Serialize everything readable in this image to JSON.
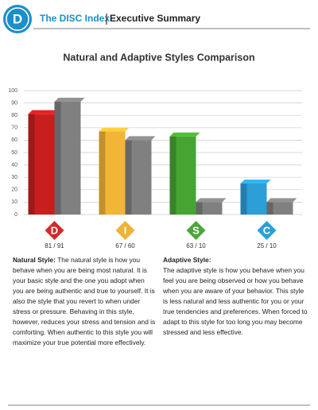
{
  "header": {
    "logo": "D",
    "title": "The DISC Index",
    "subtitle": "Executive Summary"
  },
  "chart_data": {
    "type": "bar",
    "title": "Natural and Adaptive Styles Comparison",
    "categories": [
      "D",
      "I",
      "S",
      "C"
    ],
    "category_colors": [
      "#d42a2a",
      "#f0b233",
      "#4aa83a",
      "#2a9fd8"
    ],
    "series": [
      {
        "values": [
          81,
          67,
          63,
          25
        ],
        "colors": [
          "#c81e1e",
          "#f2b535",
          "#46a532",
          "#2a9fd8"
        ]
      },
      {
        "values": [
          91,
          60,
          10,
          10
        ],
        "color": "#808080"
      }
    ],
    "score_labels": [
      "81 / 91",
      "67 / 60",
      "63 / 10",
      "25 / 10"
    ],
    "ylim": [
      0,
      100
    ],
    "yticks": [
      0,
      10,
      20,
      30,
      40,
      50,
      60,
      70,
      80,
      90,
      100
    ],
    "grid": true
  },
  "sections": [
    {
      "heading": "Natural Style:",
      "body": "The natural style is how you behave when you are being  most natural. It is your basic style and the one you adopt when you are being authentic and true to yourself.  It is also the style that you revert to when under stress or pressure. Behaving in this style, however, reduces your stress and tension and is comforting. When authentic to this style you will maximize your true potential more effectively."
    },
    {
      "heading": "Adaptive Style:",
      "body": "The adaptive style is how you behave when you feel you are being observed or how you behave when you are aware of your behavior. This style is less natural and less authentic for you or your true tendencies and preferences. When forced to adapt to this style for too long you may become stressed and less effective."
    }
  ]
}
